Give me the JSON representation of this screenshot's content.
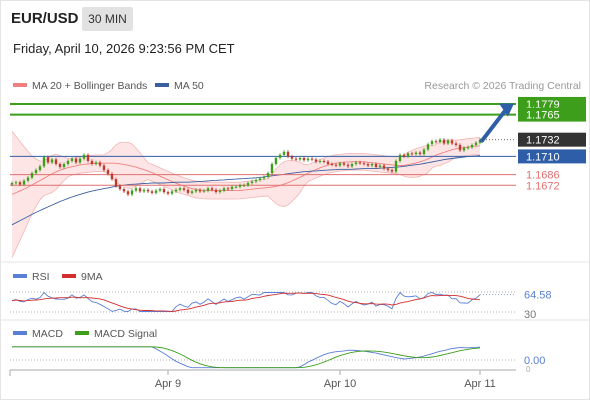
{
  "header": {
    "symbol": "EUR/USD",
    "timeframe": "30 MIN",
    "datetime": "Friday, April 10, 2026 9:23:56 PM CET",
    "credit": "Research © 2026 Trading Central"
  },
  "colors": {
    "bollinger": "#f08080",
    "band_fill": "#fde2e2",
    "ma50": "#3b5fa0",
    "resistance_green": "#3c9e1a",
    "support_red": "#e07070",
    "pivot_blue": "#2f5ea8",
    "current_price": "#333333",
    "rsi": "#5b7fd4",
    "rsi_ma": "#d32f2f",
    "macd": "#5b7fd4",
    "macd_signal": "#3c9e1a",
    "candle_up": "#3c9e1a",
    "candle_down": "#c0392b"
  },
  "chart_data": [
    {
      "type": "candlestick",
      "legend": [
        {
          "name": "MA 20 + Bollinger Bands",
          "color": "#f08080"
        },
        {
          "name": "MA 50",
          "color": "#3b5fa0"
        }
      ],
      "x_ticks": [
        "Apr 9",
        "Apr 10",
        "Apr 11"
      ],
      "ylim": [
        1.16,
        1.18
      ],
      "levels": [
        {
          "value": 1.1779,
          "label": "1.1779",
          "kind": "resistance",
          "color": "#3c9e1a"
        },
        {
          "value": 1.1765,
          "label": "1.1765",
          "kind": "resistance",
          "color": "#3c9e1a"
        },
        {
          "value": 1.1732,
          "label": "1.1732",
          "kind": "current",
          "color": "#333333"
        },
        {
          "value": 1.171,
          "label": "1.1710",
          "kind": "pivot",
          "color": "#2f5ea8"
        },
        {
          "value": 1.1686,
          "label": "1.1686",
          "kind": "support",
          "color": "#e07070"
        },
        {
          "value": 1.1672,
          "label": "1.1672",
          "kind": "support",
          "color": "#e07070"
        }
      ],
      "close": [
        1.1675,
        1.1676,
        1.1673,
        1.1678,
        1.1682,
        1.1688,
        1.1692,
        1.1697,
        1.1709,
        1.1702,
        1.1706,
        1.17,
        1.1696,
        1.17,
        1.1704,
        1.1707,
        1.1702,
        1.1707,
        1.1712,
        1.1704,
        1.17,
        1.1702,
        1.1698,
        1.1692,
        1.1687,
        1.168,
        1.1671,
        1.1667,
        1.1664,
        1.166,
        1.1665,
        1.1668,
        1.1664,
        1.1666,
        1.1664,
        1.1662,
        1.1665,
        1.1667,
        1.1663,
        1.1661,
        1.1664,
        1.1666,
        1.1668,
        1.1666,
        1.1662,
        1.1664,
        1.1666,
        1.1664,
        1.1665,
        1.1668,
        1.1666,
        1.1663,
        1.1665,
        1.1668,
        1.1667,
        1.167,
        1.167,
        1.1672,
        1.1672,
        1.1675,
        1.1677,
        1.1679,
        1.1681,
        1.1683,
        1.1688,
        1.17,
        1.1708,
        1.1712,
        1.1716,
        1.171,
        1.1707,
        1.1706,
        1.1708,
        1.1705,
        1.1707,
        1.1706,
        1.1703,
        1.1704,
        1.1703,
        1.17,
        1.1699,
        1.1698,
        1.1701,
        1.1699,
        1.1697,
        1.17,
        1.1702,
        1.1701,
        1.17,
        1.1698,
        1.17,
        1.1696,
        1.1698,
        1.1694,
        1.1692,
        1.169,
        1.1704,
        1.1712,
        1.171,
        1.1714,
        1.1713,
        1.1715,
        1.1713,
        1.1719,
        1.1726,
        1.173,
        1.1729,
        1.1732,
        1.1727,
        1.1731,
        1.1727,
        1.1725,
        1.1718,
        1.1721,
        1.1722,
        1.1725,
        1.1728,
        1.1732
      ],
      "ma20": [
        1.166,
        1.1664,
        1.1668,
        1.1673,
        1.1678,
        1.1683,
        1.1688,
        1.1692,
        1.1695,
        1.1697,
        1.1699,
        1.17,
        1.1701,
        1.1701,
        1.1701,
        1.1701,
        1.17,
        1.1698,
        1.1696,
        1.1693,
        1.169,
        1.1686,
        1.1682,
        1.1678,
        1.1674,
        1.1671,
        1.1668,
        1.1666,
        1.1665,
        1.1665,
        1.1665,
        1.1665,
        1.1665,
        1.1665,
        1.1666,
        1.1667,
        1.1668,
        1.1669,
        1.167,
        1.1672,
        1.1675,
        1.1679,
        1.1683,
        1.1688,
        1.1692,
        1.1696,
        1.1699,
        1.1701,
        1.1702,
        1.1703,
        1.1703,
        1.1703,
        1.1702,
        1.1701,
        1.17,
        1.1699,
        1.1698,
        1.1698,
        1.17,
        1.1702,
        1.1705,
        1.1709,
        1.1713,
        1.1716,
        1.1719,
        1.1721,
        1.1722,
        1.1723,
        1.1724
      ],
      "ma50": [
        1.162,
        1.1628,
        1.1636,
        1.1643,
        1.165,
        1.1656,
        1.1661,
        1.1665,
        1.1668,
        1.1671,
        1.1673,
        1.1674,
        1.1675,
        1.1675,
        1.1676,
        1.1676,
        1.1677,
        1.1678,
        1.1679,
        1.168,
        1.1681,
        1.1682,
        1.1684,
        1.1686,
        1.1688,
        1.169,
        1.1691,
        1.1692,
        1.1693,
        1.1693,
        1.1694,
        1.1694,
        1.1695,
        1.1696,
        1.1698,
        1.17,
        1.1703,
        1.1706,
        1.1708,
        1.171,
        1.1711
      ]
    },
    {
      "type": "line",
      "legend": [
        {
          "name": "RSI",
          "color": "#5b7fd4"
        },
        {
          "name": "9MA",
          "color": "#d32f2f"
        }
      ],
      "ylim": [
        30,
        70
      ],
      "y_ticks": [
        "30"
      ],
      "last_value": "64.58"
    },
    {
      "type": "line",
      "legend": [
        {
          "name": "MACD",
          "color": "#5b7fd4"
        },
        {
          "name": "MACD Signal",
          "color": "#3c9e1a"
        }
      ],
      "y_ticks": [
        "0"
      ],
      "last_value": "0.00"
    }
  ]
}
